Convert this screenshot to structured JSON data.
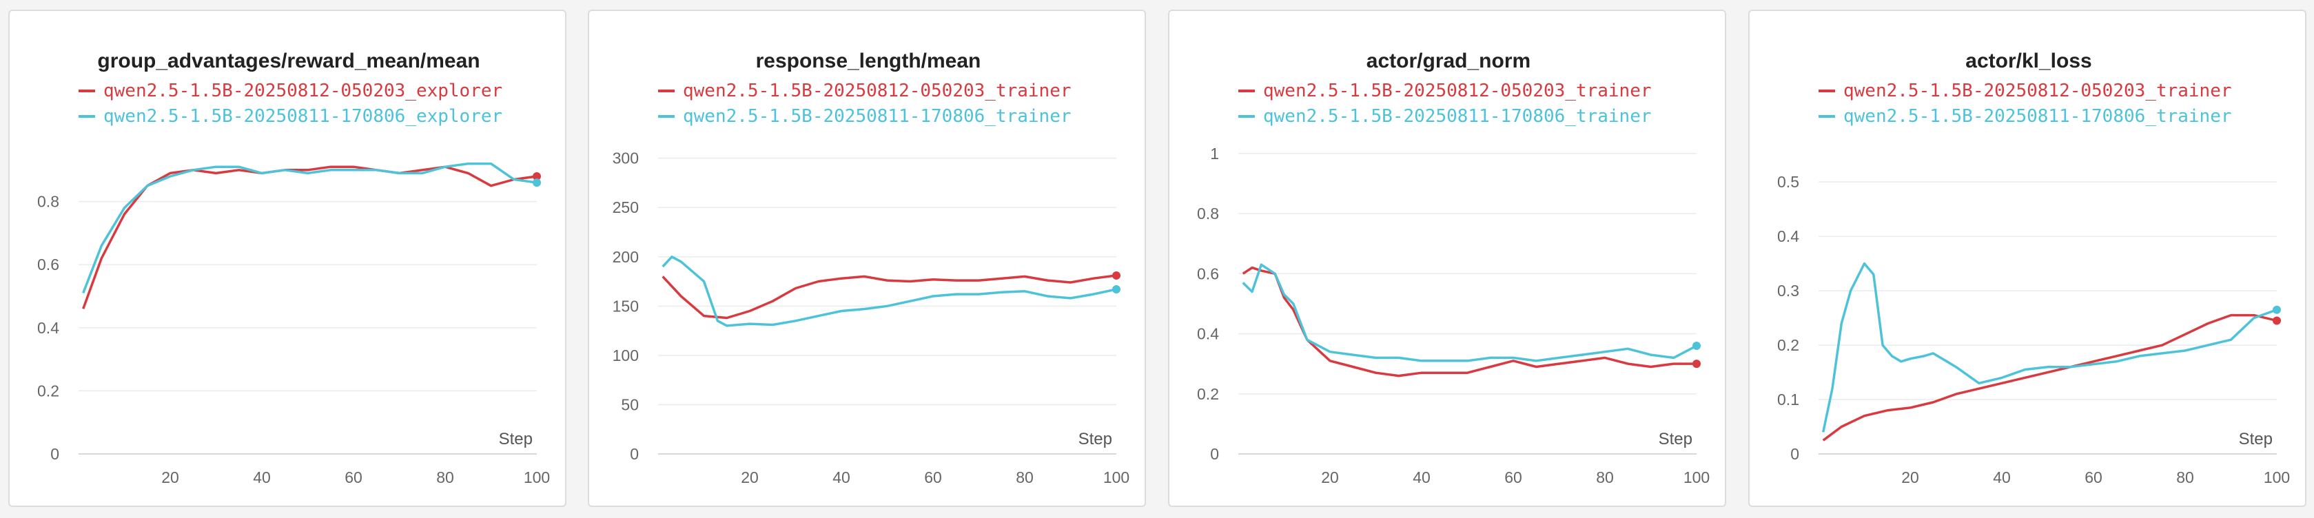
{
  "colors": {
    "series_red": "#d83a3f",
    "series_cyan": "#4dc3d9",
    "grid": "#ebebeb",
    "axis": "#cccccc"
  },
  "charts": [
    {
      "title": "group_advantages/reward_mean/mean",
      "xlabel": "Step",
      "legend": [
        "qwen2.5-1.5B-20250812-050203_explorer",
        "qwen2.5-1.5B-20250811-170806_explorer"
      ]
    },
    {
      "title": "response_length/mean",
      "xlabel": "Step",
      "legend": [
        "qwen2.5-1.5B-20250812-050203_trainer",
        "qwen2.5-1.5B-20250811-170806_trainer"
      ]
    },
    {
      "title": "actor/grad_norm",
      "xlabel": "Step",
      "legend": [
        "qwen2.5-1.5B-20250812-050203_trainer",
        "qwen2.5-1.5B-20250811-170806_trainer"
      ]
    },
    {
      "title": "actor/kl_loss",
      "xlabel": "Step",
      "legend": [
        "qwen2.5-1.5B-20250812-050203_trainer",
        "qwen2.5-1.5B-20250811-170806_trainer"
      ]
    }
  ],
  "chart_data": [
    {
      "type": "line",
      "title": "group_advantages/reward_mean/mean",
      "xlabel": "Step",
      "ylabel": "",
      "xlim": [
        0,
        100
      ],
      "ylim": [
        0,
        1.0
      ],
      "xticks": [
        20,
        40,
        60,
        80,
        100
      ],
      "yticks": [
        0,
        0.2,
        0.4,
        0.6,
        0.8
      ],
      "ytick_labels": [
        "0",
        "0.2",
        "0.4",
        "0.6",
        "0.8"
      ],
      "grid": true,
      "legend_position": "top-left",
      "series": [
        {
          "name": "qwen2.5-1.5B-20250812-050203_explorer",
          "color": "#d83a3f",
          "x": [
            1,
            5,
            10,
            15,
            20,
            25,
            30,
            35,
            40,
            45,
            50,
            55,
            60,
            65,
            70,
            75,
            80,
            85,
            90,
            95,
            100
          ],
          "y": [
            0.46,
            0.62,
            0.76,
            0.85,
            0.89,
            0.9,
            0.89,
            0.9,
            0.89,
            0.9,
            0.9,
            0.91,
            0.91,
            0.9,
            0.89,
            0.9,
            0.91,
            0.89,
            0.85,
            0.87,
            0.88
          ]
        },
        {
          "name": "qwen2.5-1.5B-20250811-170806_explorer",
          "color": "#4dc3d9",
          "x": [
            1,
            5,
            10,
            15,
            20,
            25,
            30,
            35,
            40,
            45,
            50,
            55,
            60,
            65,
            70,
            75,
            80,
            85,
            90,
            95,
            100
          ],
          "y": [
            0.51,
            0.66,
            0.78,
            0.85,
            0.88,
            0.9,
            0.91,
            0.91,
            0.89,
            0.9,
            0.89,
            0.9,
            0.9,
            0.9,
            0.89,
            0.89,
            0.91,
            0.92,
            0.92,
            0.87,
            0.86
          ]
        }
      ]
    },
    {
      "type": "line",
      "title": "response_length/mean",
      "xlabel": "Step",
      "ylabel": "",
      "xlim": [
        0,
        100
      ],
      "ylim": [
        0,
        320
      ],
      "xticks": [
        20,
        40,
        60,
        80,
        100
      ],
      "yticks": [
        0,
        50,
        100,
        150,
        200,
        250,
        300
      ],
      "ytick_labels": [
        "0",
        "50",
        "100",
        "150",
        "200",
        "250",
        "300"
      ],
      "grid": true,
      "legend_position": "top-left",
      "series": [
        {
          "name": "qwen2.5-1.5B-20250812-050203_trainer",
          "color": "#d83a3f",
          "x": [
            1,
            5,
            10,
            15,
            20,
            25,
            30,
            35,
            40,
            45,
            50,
            55,
            60,
            65,
            70,
            75,
            80,
            85,
            90,
            95,
            100
          ],
          "y": [
            180,
            160,
            140,
            138,
            145,
            155,
            168,
            175,
            178,
            180,
            176,
            175,
            177,
            176,
            176,
            178,
            180,
            176,
            174,
            178,
            181
          ]
        },
        {
          "name": "qwen2.5-1.5B-20250811-170806_trainer",
          "color": "#4dc3d9",
          "x": [
            1,
            3,
            5,
            10,
            13,
            15,
            20,
            25,
            30,
            35,
            40,
            45,
            50,
            55,
            60,
            65,
            70,
            75,
            80,
            85,
            90,
            95,
            100
          ],
          "y": [
            190,
            200,
            195,
            175,
            135,
            130,
            132,
            131,
            135,
            140,
            145,
            147,
            150,
            155,
            160,
            162,
            162,
            164,
            165,
            160,
            158,
            162,
            167
          ]
        }
      ]
    },
    {
      "type": "line",
      "title": "actor/grad_norm",
      "xlabel": "Step",
      "ylabel": "",
      "xlim": [
        0,
        100
      ],
      "ylim": [
        0,
        1.05
      ],
      "xticks": [
        20,
        40,
        60,
        80,
        100
      ],
      "yticks": [
        0,
        0.2,
        0.4,
        0.6,
        0.8,
        1
      ],
      "ytick_labels": [
        "0",
        "0.2",
        "0.4",
        "0.6",
        "0.8",
        "1"
      ],
      "grid": true,
      "legend_position": "top-left",
      "series": [
        {
          "name": "qwen2.5-1.5B-20250812-050203_trainer",
          "color": "#d83a3f",
          "x": [
            1,
            3,
            5,
            8,
            10,
            12,
            15,
            20,
            25,
            30,
            35,
            40,
            45,
            50,
            55,
            60,
            65,
            70,
            75,
            80,
            85,
            90,
            95,
            100
          ],
          "y": [
            0.6,
            0.62,
            0.61,
            0.6,
            0.52,
            0.48,
            0.38,
            0.31,
            0.29,
            0.27,
            0.26,
            0.27,
            0.27,
            0.27,
            0.29,
            0.31,
            0.29,
            0.3,
            0.31,
            0.32,
            0.3,
            0.29,
            0.3,
            0.3
          ]
        },
        {
          "name": "qwen2.5-1.5B-20250811-170806_trainer",
          "color": "#4dc3d9",
          "x": [
            1,
            3,
            5,
            8,
            10,
            12,
            15,
            20,
            25,
            30,
            35,
            40,
            45,
            50,
            55,
            60,
            65,
            70,
            75,
            80,
            85,
            90,
            95,
            100
          ],
          "y": [
            0.57,
            0.54,
            0.63,
            0.6,
            0.53,
            0.5,
            0.38,
            0.34,
            0.33,
            0.32,
            0.32,
            0.31,
            0.31,
            0.31,
            0.32,
            0.32,
            0.31,
            0.32,
            0.33,
            0.34,
            0.35,
            0.33,
            0.32,
            0.36
          ]
        }
      ]
    },
    {
      "type": "line",
      "title": "actor/kl_loss",
      "xlabel": "Step",
      "ylabel": "",
      "xlim": [
        0,
        100
      ],
      "ylim": [
        0,
        0.58
      ],
      "xticks": [
        20,
        40,
        60,
        80,
        100
      ],
      "yticks": [
        0,
        0.1,
        0.2,
        0.3,
        0.4,
        0.5
      ],
      "ytick_labels": [
        "0",
        "0.1",
        "0.2",
        "0.3",
        "0.4",
        "0.5"
      ],
      "grid": true,
      "legend_position": "top-left",
      "series": [
        {
          "name": "qwen2.5-1.5B-20250812-050203_trainer",
          "color": "#d83a3f",
          "x": [
            1,
            5,
            10,
            15,
            20,
            25,
            30,
            35,
            40,
            45,
            50,
            55,
            60,
            65,
            70,
            75,
            80,
            85,
            90,
            95,
            100
          ],
          "y": [
            0.025,
            0.05,
            0.07,
            0.08,
            0.085,
            0.095,
            0.11,
            0.12,
            0.13,
            0.14,
            0.15,
            0.16,
            0.17,
            0.18,
            0.19,
            0.2,
            0.22,
            0.24,
            0.255,
            0.255,
            0.245
          ]
        },
        {
          "name": "qwen2.5-1.5B-20250811-170806_trainer",
          "color": "#4dc3d9",
          "x": [
            1,
            3,
            5,
            7,
            10,
            12,
            14,
            16,
            18,
            20,
            23,
            25,
            28,
            30,
            35,
            40,
            45,
            50,
            55,
            60,
            65,
            70,
            75,
            80,
            85,
            90,
            95,
            100
          ],
          "y": [
            0.04,
            0.12,
            0.24,
            0.3,
            0.35,
            0.33,
            0.2,
            0.18,
            0.17,
            0.175,
            0.18,
            0.185,
            0.17,
            0.16,
            0.13,
            0.14,
            0.155,
            0.16,
            0.16,
            0.165,
            0.17,
            0.18,
            0.185,
            0.19,
            0.2,
            0.21,
            0.25,
            0.265
          ]
        }
      ]
    }
  ]
}
